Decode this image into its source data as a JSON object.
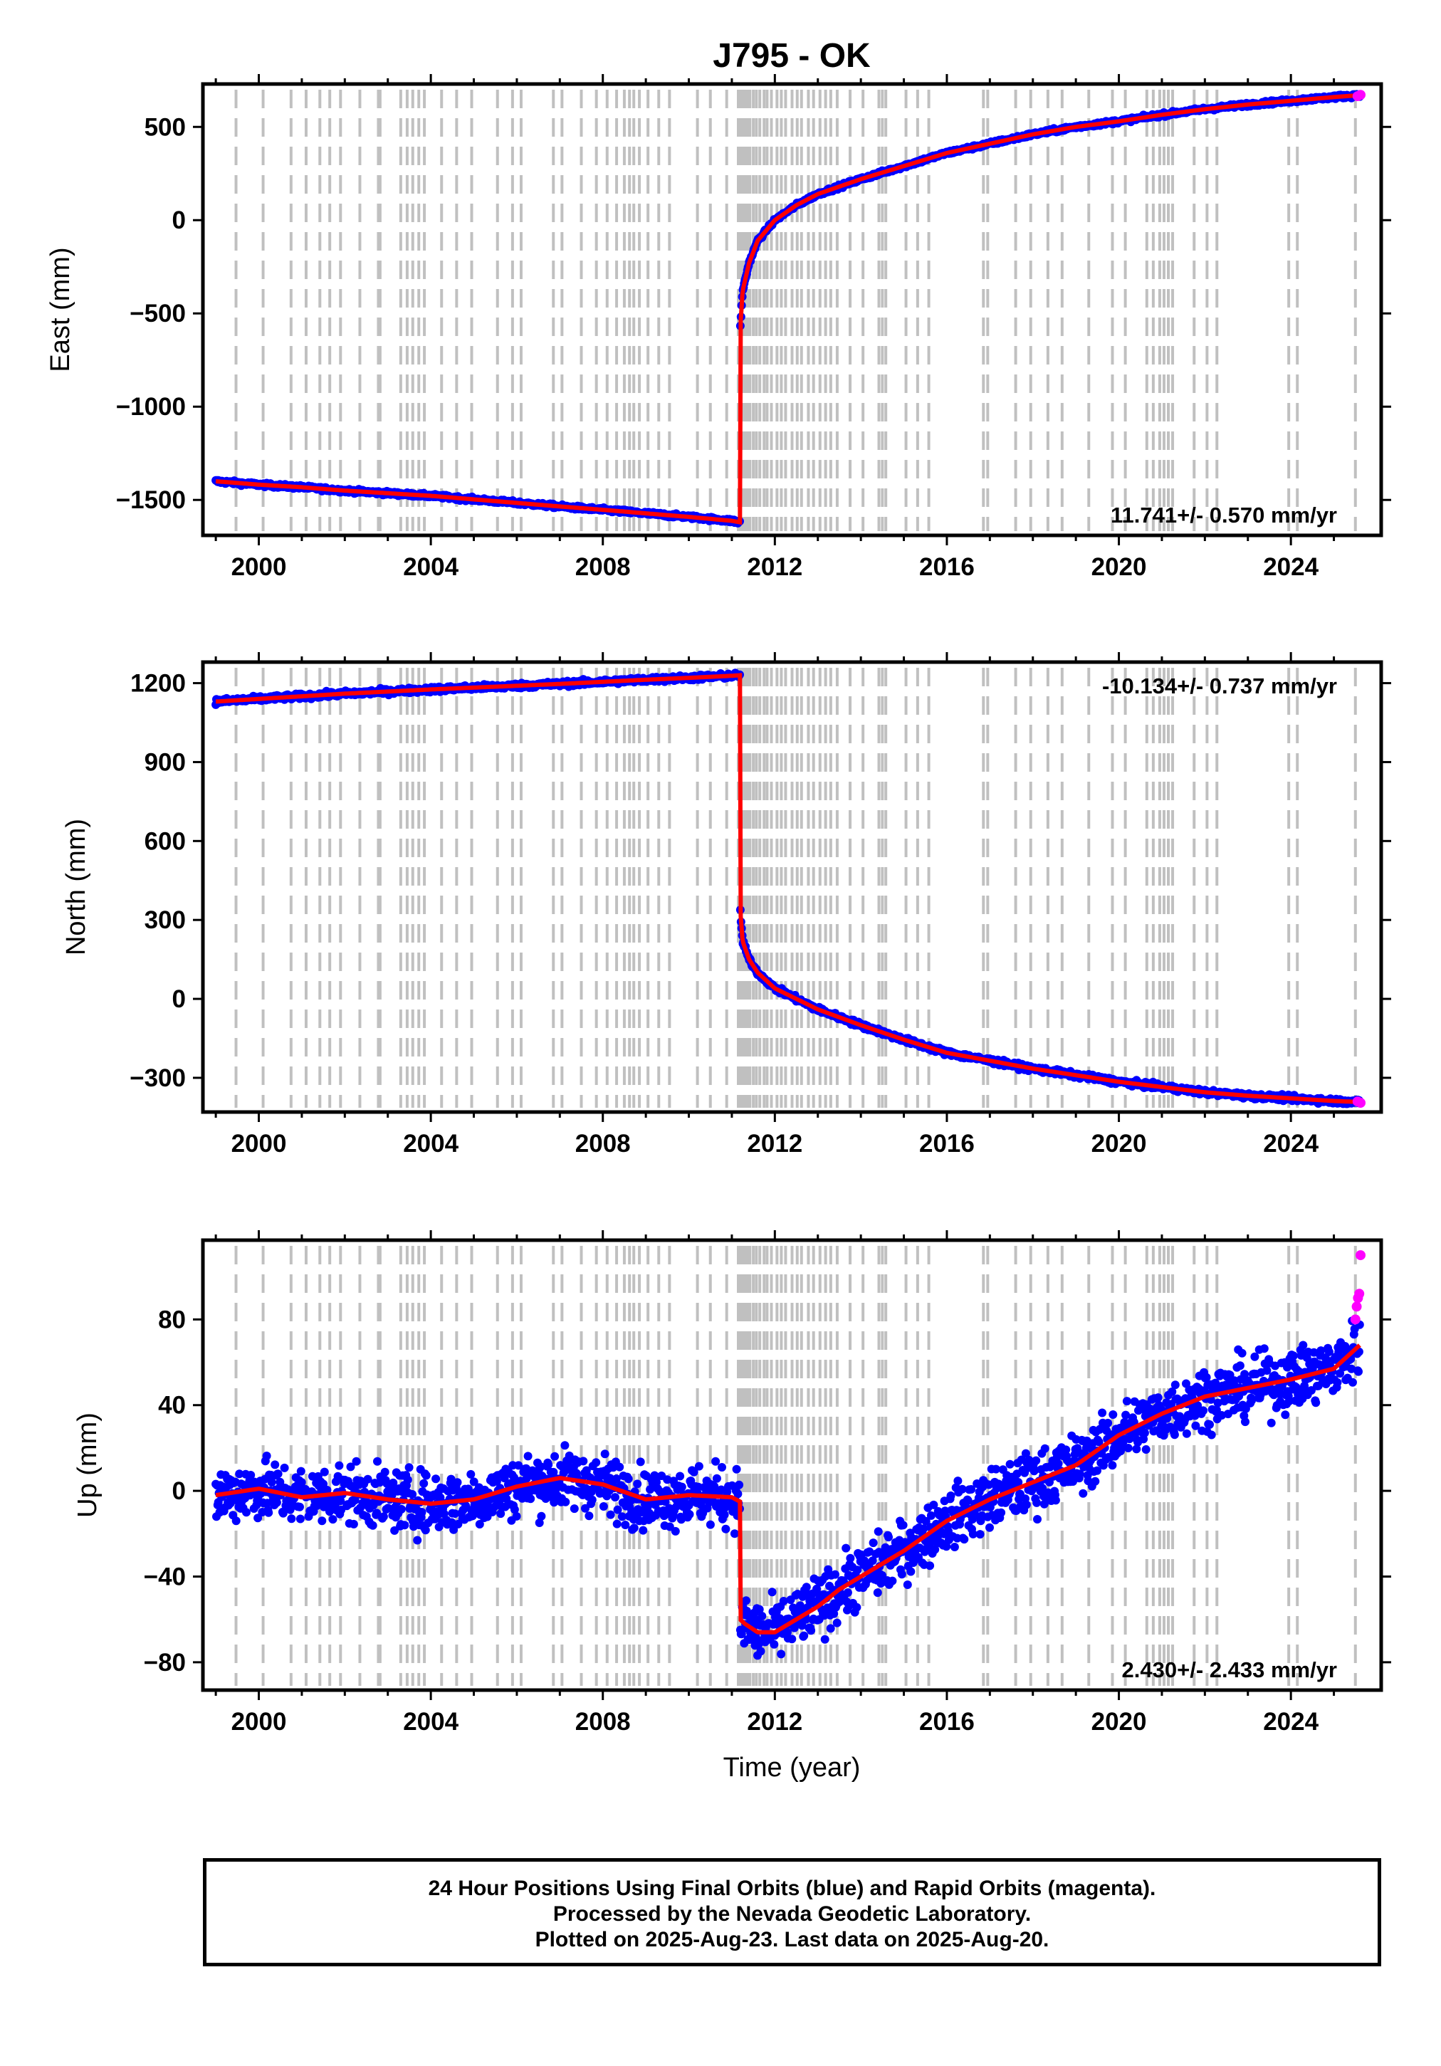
{
  "figure": {
    "title": "J795 - OK",
    "xlabel": "Time (year)",
    "caption": [
      "24 Hour Positions Using Final Orbits (blue) and Rapid Orbits (magenta).",
      "Processed by the Nevada Geodetic Laboratory.",
      "Plotted on 2025-Aug-23. Last data on 2025-Aug-20."
    ]
  },
  "colors": {
    "final_orbits": "#0000ff",
    "rapid_orbits": "#ff00ff",
    "model": "#ff0000",
    "steps": "#c0c0c0",
    "axes": "#000000"
  },
  "chart_data": [
    {
      "type": "scatter",
      "ylabel": "East (mm)",
      "xlim": [
        1998.7,
        2026.1
      ],
      "ylim": [
        -1690,
        730
      ],
      "xticks": [
        2000,
        2004,
        2008,
        2012,
        2016,
        2020,
        2024
      ],
      "yticks": [
        -1500,
        -1000,
        -500,
        0,
        500
      ],
      "ytick_labels": [
        "−1500",
        "−1000",
        "−500",
        "0",
        "500"
      ],
      "rate_label": "11.741+/- 0.570 mm/yr",
      "rate_position": "bottom-right",
      "series": {
        "x": [
          1999.0,
          2000.0,
          2001.0,
          2002.0,
          2003.0,
          2004.0,
          2005.0,
          2006.0,
          2007.0,
          2008.0,
          2009.0,
          2010.0,
          2011.0,
          2011.19,
          2011.19,
          2011.25,
          2011.4,
          2011.6,
          2012.0,
          2012.5,
          2013.0,
          2014.0,
          2015.0,
          2016.0,
          2017.0,
          2018.0,
          2019.0,
          2020.0,
          2021.0,
          2022.0,
          2023.0,
          2024.0,
          2025.0,
          2025.6
        ],
        "y": [
          -1400,
          -1418,
          -1432,
          -1450,
          -1464,
          -1478,
          -1497,
          -1516,
          -1535,
          -1553,
          -1572,
          -1591,
          -1612,
          -1620,
          -600,
          -380,
          -230,
          -110,
          0,
          80,
          140,
          220,
          290,
          360,
          410,
          460,
          500,
          530,
          565,
          595,
          620,
          640,
          660,
          670
        ],
        "noise_mm": 5
      },
      "rapid": {
        "x": [
          2025.55,
          2025.62
        ],
        "y": [
          665,
          672
        ]
      }
    },
    {
      "type": "scatter",
      "ylabel": "North (mm)",
      "xlim": [
        1998.7,
        2026.1
      ],
      "ylim": [
        -430,
        1280
      ],
      "xticks": [
        2000,
        2004,
        2008,
        2012,
        2016,
        2020,
        2024
      ],
      "yticks": [
        -300,
        0,
        300,
        600,
        900,
        1200
      ],
      "ytick_labels": [
        "−300",
        "0",
        "300",
        "600",
        "900",
        "1200"
      ],
      "rate_label": "-10.134+/- 0.737 mm/yr",
      "rate_position": "top-right",
      "series": {
        "x": [
          1999.0,
          2000.0,
          2001.0,
          2002.0,
          2003.0,
          2004.0,
          2005.0,
          2006.0,
          2007.0,
          2008.0,
          2009.0,
          2010.0,
          2011.0,
          2011.19,
          2011.19,
          2011.25,
          2011.4,
          2011.6,
          2012.0,
          2012.5,
          2013.0,
          2014.0,
          2015.0,
          2016.0,
          2017.0,
          2018.0,
          2019.0,
          2020.0,
          2021.0,
          2022.0,
          2023.0,
          2024.0,
          2025.0,
          2025.6
        ],
        "y": [
          1130,
          1140,
          1150,
          1160,
          1168,
          1176,
          1183,
          1190,
          1197,
          1205,
          1213,
          1220,
          1228,
          1230,
          350,
          220,
          150,
          100,
          40,
          0,
          -40,
          -100,
          -155,
          -205,
          -235,
          -265,
          -290,
          -315,
          -335,
          -355,
          -368,
          -378,
          -388,
          -392
        ],
        "noise_mm": 5
      },
      "rapid": {
        "x": [
          2025.55,
          2025.62
        ],
        "y": [
          -390,
          -395
        ]
      }
    },
    {
      "type": "scatter",
      "ylabel": "Up (mm)",
      "xlim": [
        1998.7,
        2026.1
      ],
      "ylim": [
        -93,
        117
      ],
      "xticks": [
        2000,
        2004,
        2008,
        2012,
        2016,
        2020,
        2024
      ],
      "yticks": [
        -80,
        -40,
        0,
        40,
        80
      ],
      "ytick_labels": [
        "−80",
        "−40",
        "0",
        "40",
        "80"
      ],
      "rate_label": "2.430+/- 2.433 mm/yr",
      "rate_position": "bottom-right",
      "series": {
        "x": [
          1999.0,
          2000.0,
          2001.0,
          2002.0,
          2003.0,
          2004.0,
          2005.0,
          2006.0,
          2007.0,
          2008.0,
          2009.0,
          2010.0,
          2011.0,
          2011.19,
          2011.19,
          2011.3,
          2011.6,
          2012.0,
          2012.5,
          2013.0,
          2013.5,
          2014.0,
          2015.0,
          2016.0,
          2017.0,
          2018.0,
          2019.0,
          2020.0,
          2021.0,
          2022.0,
          2023.0,
          2024.0,
          2025.0,
          2025.6
        ],
        "y": [
          -2,
          1,
          -3,
          -1,
          -4,
          -6,
          -4,
          2,
          6,
          3,
          -4,
          -2,
          -3,
          -5,
          -60,
          -62,
          -66,
          -66,
          -60,
          -54,
          -46,
          -40,
          -28,
          -14,
          -4,
          4,
          12,
          26,
          36,
          44,
          48,
          52,
          57,
          68
        ],
        "seasonal_mm": 6,
        "noise_mm": 7
      },
      "rapid": {
        "x": [
          2025.5,
          2025.53,
          2025.56,
          2025.59,
          2025.62
        ],
        "y": [
          80,
          86,
          90,
          92,
          110
        ]
      }
    }
  ],
  "step_epochs": [
    1999.47,
    2000.1,
    2000.75,
    2001.1,
    2001.42,
    2001.65,
    2001.9,
    2002.35,
    2002.78,
    2002.82,
    2003.3,
    2003.45,
    2003.58,
    2003.72,
    2003.85,
    2004.25,
    2004.6,
    2004.95,
    2005.55,
    2005.9,
    2006.1,
    2006.85,
    2007.05,
    2007.5,
    2007.85,
    2008.1,
    2008.32,
    2008.5,
    2008.62,
    2008.72,
    2008.85,
    2009.05,
    2009.3,
    2009.55,
    2010.2,
    2010.5,
    2010.88,
    2011.15,
    2011.2,
    2011.25,
    2011.3,
    2011.36,
    2011.42,
    2011.5,
    2011.57,
    2011.65,
    2011.75,
    2011.82,
    2011.92,
    2012.05,
    2012.15,
    2012.25,
    2012.4,
    2012.52,
    2012.62,
    2012.78,
    2012.9,
    2013.05,
    2013.18,
    2013.3,
    2013.45,
    2013.75,
    2014.05,
    2014.42,
    2014.5,
    2014.58,
    2015.05,
    2015.32,
    2015.58,
    2016.85,
    2016.95,
    2017.6,
    2017.95,
    2018.35,
    2018.68,
    2019.3,
    2019.85,
    2020.15,
    2020.65,
    2020.8,
    2020.95,
    2021.05,
    2021.15,
    2021.25,
    2021.75,
    2022.05,
    2022.28,
    2023.95,
    2024.15,
    2025.5
  ]
}
